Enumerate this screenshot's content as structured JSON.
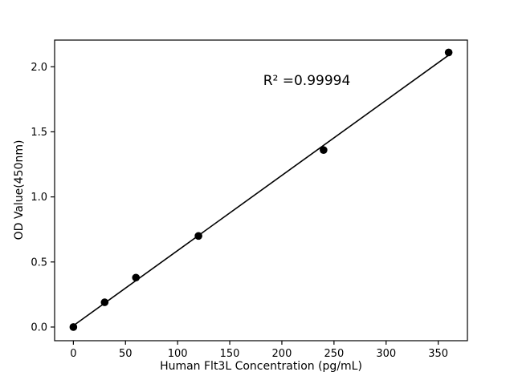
{
  "chart_data": {
    "type": "scatter",
    "title": "",
    "xlabel": "Human Flt3L Concentration (pg/mL)",
    "ylabel": "OD Value(450nm)",
    "annotation": "R² =0.99994",
    "x": [
      0,
      30,
      60,
      120,
      240,
      360
    ],
    "y": [
      0.0,
      0.19,
      0.38,
      0.7,
      1.36,
      2.11
    ],
    "fit_line": true,
    "xticks": [
      0,
      50,
      100,
      150,
      200,
      250,
      300,
      350
    ],
    "ytick_labels": [
      "0.0",
      "0.5",
      "1.0",
      "1.5",
      "2.0"
    ],
    "yticks": [
      0.0,
      0.5,
      1.0,
      1.5,
      2.0
    ],
    "xlim": [
      -18,
      378
    ],
    "ylim": [
      -0.105,
      2.205
    ],
    "grid": false,
    "legend": null,
    "marker_color": "#000000",
    "line_color": "#000000",
    "axis_color": "#000000",
    "background_color": "#ffffff"
  }
}
